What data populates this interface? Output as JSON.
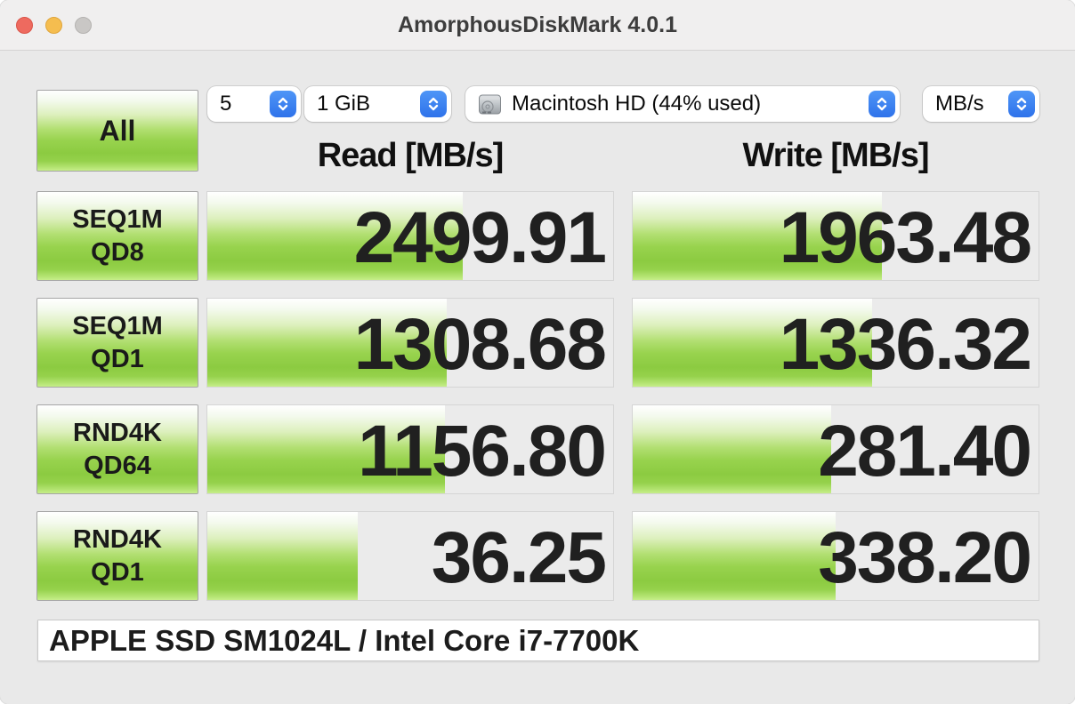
{
  "window": {
    "title": "AmorphousDiskMark 4.0.1"
  },
  "toolbar": {
    "all_button_label": "All",
    "trial_count": {
      "value": "5"
    },
    "test_size": {
      "value": "1 GiB"
    },
    "target_disk": {
      "value": "Macintosh HD (44% used)",
      "icon": "hard-drive-icon"
    },
    "unit": {
      "value": "MB/s"
    }
  },
  "headers": {
    "read": "Read [MB/s]",
    "write": "Write [MB/s]"
  },
  "rows": [
    {
      "button_line1": "SEQ1M",
      "button_line2": "QD8",
      "read_value": "2499.91",
      "write_value": "1963.48",
      "read_bar_percent": 63,
      "write_bar_percent": 61.5
    },
    {
      "button_line1": "SEQ1M",
      "button_line2": "QD1",
      "read_value": "1308.68",
      "write_value": "1336.32",
      "read_bar_percent": 59,
      "write_bar_percent": 59
    },
    {
      "button_line1": "RND4K",
      "button_line2": "QD64",
      "read_value": "1156.80",
      "write_value": "281.40",
      "read_bar_percent": 58.5,
      "write_bar_percent": 49
    },
    {
      "button_line1": "RND4K",
      "button_line2": "QD1",
      "read_value": "36.25",
      "write_value": "338.20",
      "read_bar_percent": 37,
      "write_bar_percent": 50
    }
  ],
  "footer": {
    "device_info": "APPLE SSD SM1024L / Intel Core i7-7700K"
  },
  "colors": {
    "accent_green": "#92cf47",
    "accent_green_light": "#c6ee8a",
    "stepper_blue": "#3478f6",
    "traffic_red": "#ee6a5f",
    "traffic_yellow": "#f5bd4f",
    "traffic_gray": "#c9c7c5",
    "window_bg": "#e9e9e9",
    "titlebar_bg": "#f0efef",
    "value_text": "#202020"
  }
}
